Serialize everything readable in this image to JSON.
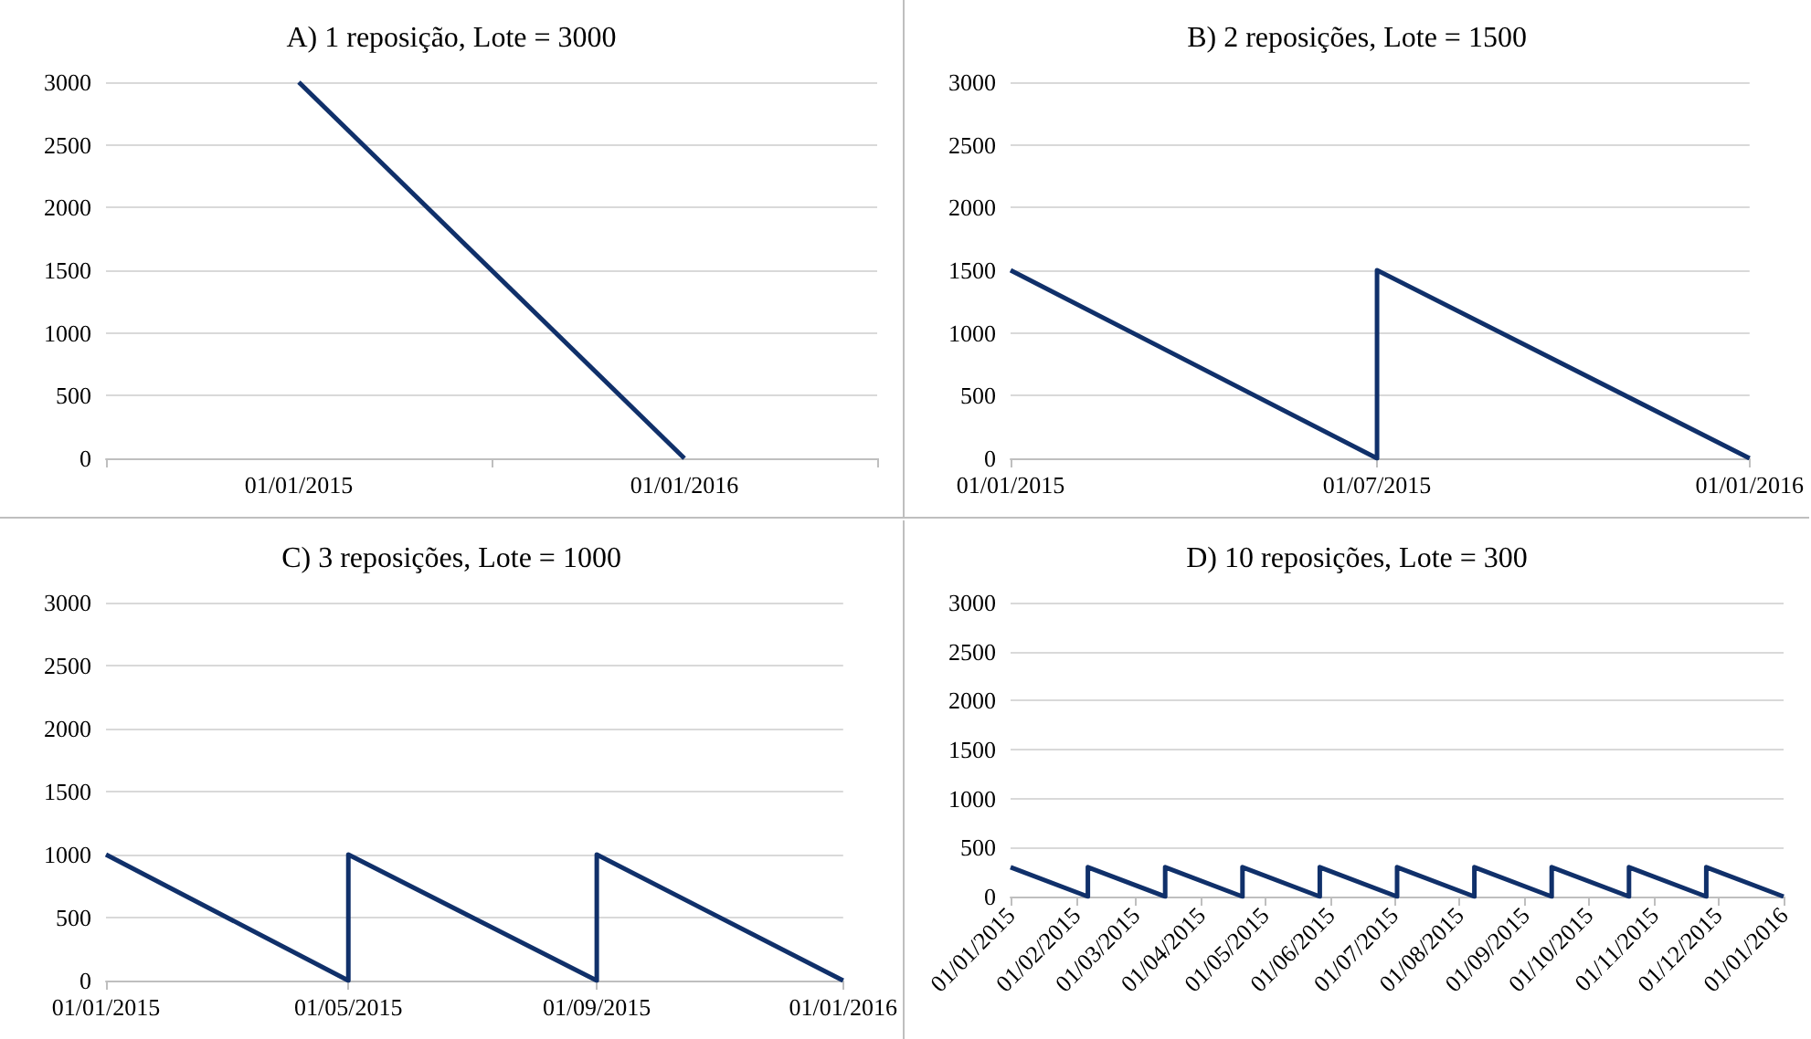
{
  "chart_data": [
    {
      "type": "line",
      "title": "A) 1 reposição, Lote = 3000",
      "categories": [
        "01/01/2015",
        "01/01/2016"
      ],
      "values": [
        3000,
        0
      ],
      "color": "#10306a",
      "ylim": [
        0,
        3000
      ],
      "yticks": [
        0,
        500,
        1000,
        1500,
        2000,
        2500,
        3000
      ],
      "grid": "y"
    },
    {
      "type": "line",
      "title": "B) 2 reposições, Lote = 1500",
      "x": [
        "2015-01-01",
        "2015-07-01",
        "2015-07-01",
        "2016-01-01"
      ],
      "values": [
        1500,
        0,
        1500,
        0
      ],
      "color": "#10306a",
      "xlim": [
        "2015-01-01",
        "2016-01-01"
      ],
      "xticks": [
        {
          "value": "2015-01-01",
          "label": "01/01/2015"
        },
        {
          "value": "2015-07-01",
          "label": "01/07/2015"
        },
        {
          "value": "2016-01-01",
          "label": "01/01/2016"
        }
      ],
      "ylim": [
        0,
        3000
      ],
      "yticks": [
        0,
        500,
        1000,
        1500,
        2000,
        2500,
        3000
      ],
      "grid": "y"
    },
    {
      "type": "line",
      "title": "C) 3 reposições, Lote = 1000",
      "x": [
        "2015-01-01",
        "2015-05-01",
        "2015-05-01",
        "2015-09-01",
        "2015-09-01",
        "2016-01-01"
      ],
      "values": [
        1000,
        0,
        1000,
        0,
        1000,
        0
      ],
      "color": "#10306a",
      "xlim": [
        "2015-01-01",
        "2016-01-01"
      ],
      "xticks": [
        {
          "value": "2015-01-01",
          "label": "01/01/2015"
        },
        {
          "value": "2015-05-01",
          "label": "01/05/2015"
        },
        {
          "value": "2015-09-01",
          "label": "01/09/2015"
        },
        {
          "value": "2016-01-01",
          "label": "01/01/2016"
        }
      ],
      "ylim": [
        0,
        3000
      ],
      "yticks": [
        0,
        500,
        1000,
        1500,
        2000,
        2500,
        3000
      ],
      "grid": "y"
    },
    {
      "type": "line",
      "title": "D) 10 reposições, Lote = 300",
      "x": [
        "2015-01-01",
        "2015-02-06T12:00",
        "2015-02-06T12:00",
        "2015-03-15",
        "2015-03-15",
        "2015-04-20T12:00",
        "2015-04-20T12:00",
        "2015-05-27",
        "2015-05-27",
        "2015-07-02T12:00",
        "2015-07-02T12:00",
        "2015-08-08",
        "2015-08-08",
        "2015-09-13T12:00",
        "2015-09-13T12:00",
        "2015-10-20",
        "2015-10-20",
        "2015-11-25T12:00",
        "2015-11-25T12:00",
        "2016-01-01"
      ],
      "values": [
        300,
        0,
        300,
        0,
        300,
        0,
        300,
        0,
        300,
        0,
        300,
        0,
        300,
        0,
        300,
        0,
        300,
        0,
        300,
        0
      ],
      "color": "#10306a",
      "xlim": [
        "2015-01-01",
        "2016-01-01"
      ],
      "xticks": [
        {
          "value": "2015-01-01",
          "label": "01/01/2015"
        },
        {
          "value": "2015-02-01",
          "label": "01/02/2015"
        },
        {
          "value": "2015-03-01",
          "label": "01/03/2015"
        },
        {
          "value": "2015-04-01",
          "label": "01/04/2015"
        },
        {
          "value": "2015-05-01",
          "label": "01/05/2015"
        },
        {
          "value": "2015-06-01",
          "label": "01/06/2015"
        },
        {
          "value": "2015-07-01",
          "label": "01/07/2015"
        },
        {
          "value": "2015-08-01",
          "label": "01/08/2015"
        },
        {
          "value": "2015-09-01",
          "label": "01/09/2015"
        },
        {
          "value": "2015-10-01",
          "label": "01/10/2015"
        },
        {
          "value": "2015-11-01",
          "label": "01/11/2015"
        },
        {
          "value": "2015-12-01",
          "label": "01/12/2015"
        },
        {
          "value": "2016-01-01",
          "label": "01/01/2016"
        }
      ],
      "ylim": [
        0,
        3000
      ],
      "yticks": [
        0,
        500,
        1000,
        1500,
        2000,
        2500,
        3000
      ],
      "grid": "y"
    }
  ]
}
